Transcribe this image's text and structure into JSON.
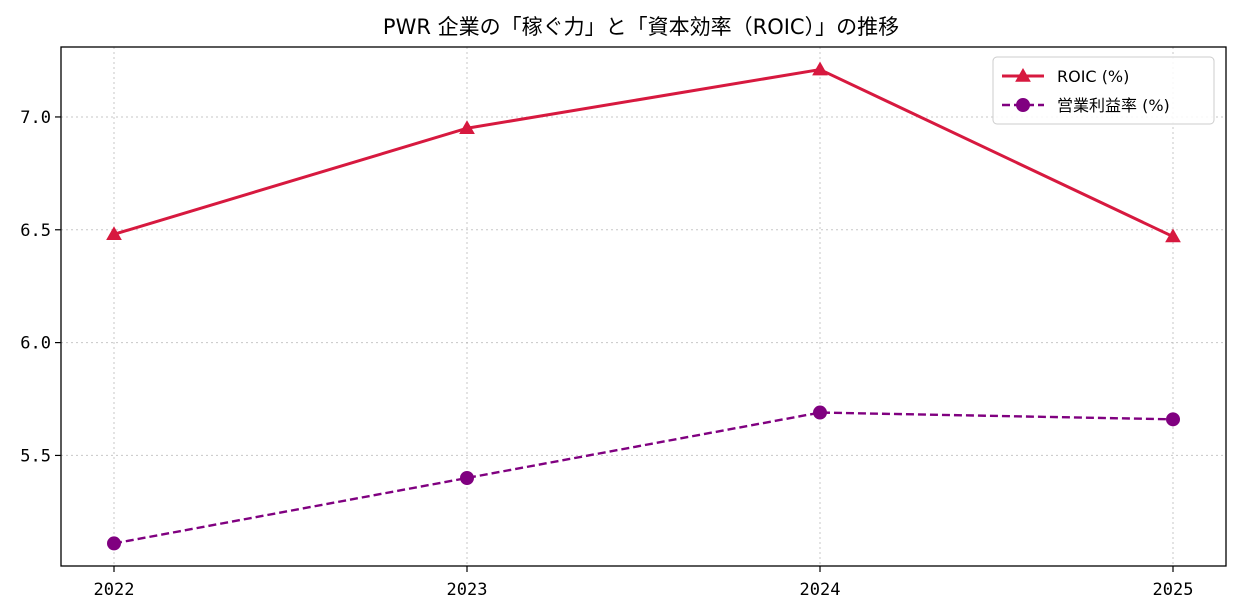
{
  "chart_data": {
    "type": "line",
    "title": "PWR 企業の「稼ぐ力」と「資本効率（ROIC）」の推移",
    "xlabel": "",
    "ylabel": "",
    "x": [
      "2022",
      "2023",
      "2024",
      "2025"
    ],
    "ylim": [
      5.01,
      7.31
    ],
    "yticks": [
      "5.5",
      "6.0",
      "6.5",
      "7.0"
    ],
    "grid": true,
    "legend_position": "top-right",
    "series": [
      {
        "name": "ROIC (%)",
        "values": [
          6.48,
          6.95,
          7.21,
          6.47
        ],
        "color": "#d7193f",
        "marker": "triangle",
        "line_style": "solid"
      },
      {
        "name": "営業利益率 (%)",
        "values": [
          5.11,
          5.4,
          5.69,
          5.66
        ],
        "color": "#800080",
        "marker": "circle",
        "line_style": "dashed"
      }
    ]
  }
}
